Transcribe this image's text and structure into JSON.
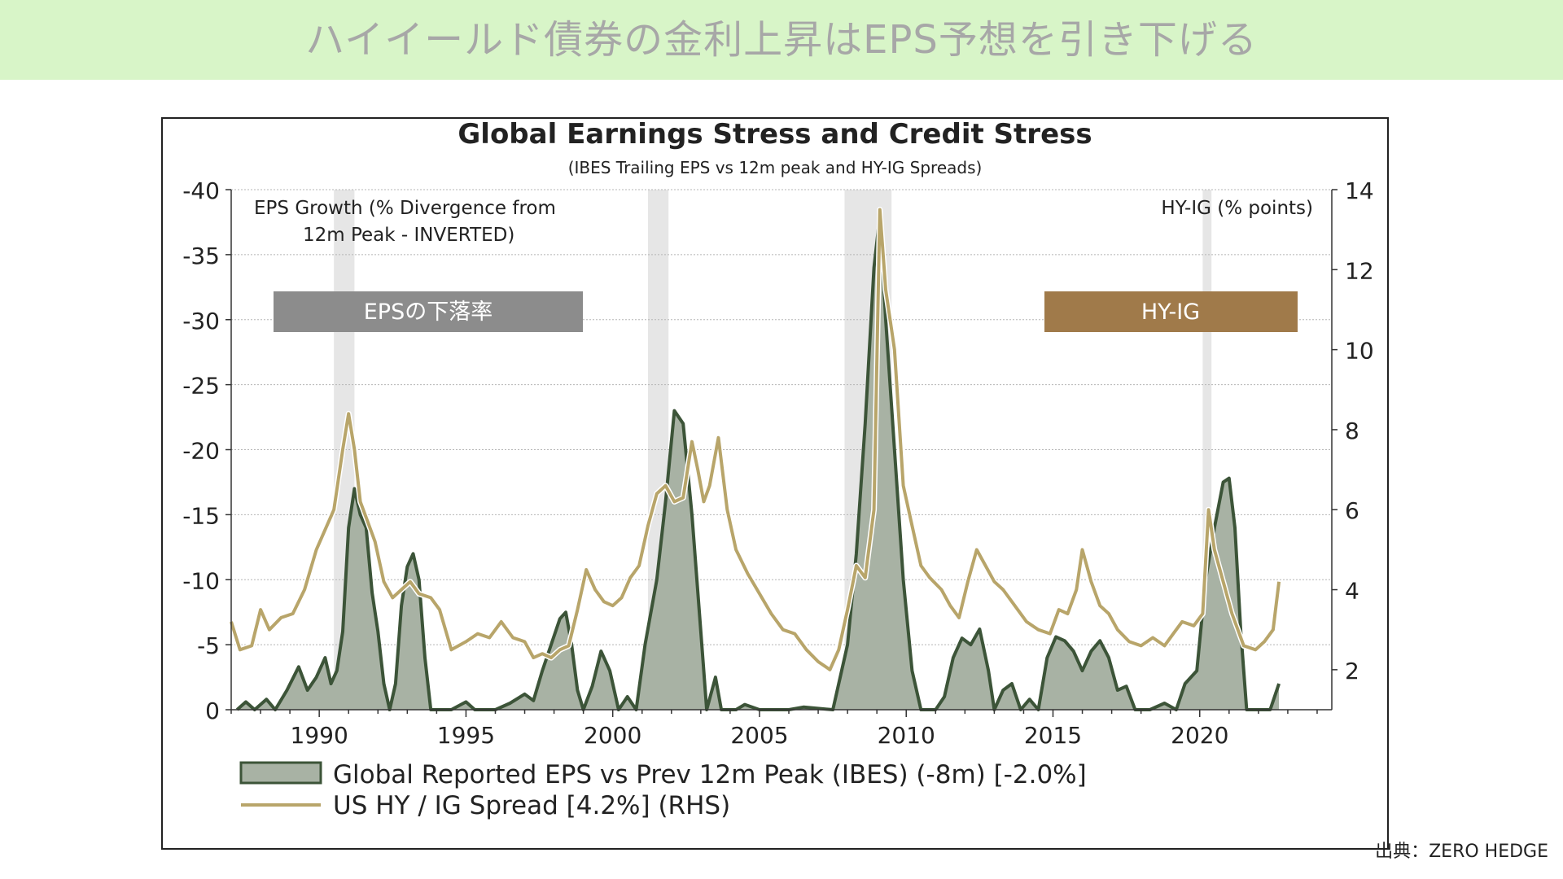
{
  "banner": {
    "title": "ハイイールド債券の金利上昇はEPS予想を引き下げる"
  },
  "source": "出典：ZERO HEDGE",
  "chart_data": {
    "type": "area",
    "title": "Global Earnings Stress and Credit Stress",
    "subtitle": "(IBES Trailing EPS vs 12m peak and HY-IG Spreads)",
    "left_axis_label_line1": "EPS Growth (% Divergence from",
    "left_axis_label_line2": "12m Peak - INVERTED)",
    "right_axis_label": "HY-IG (% points)",
    "badge_left": "EPSの下落率",
    "badge_right": "HY-IG",
    "left_ticks": [
      "-40",
      "-35",
      "-30",
      "-25",
      "-20",
      "-15",
      "-10",
      "-5",
      "0"
    ],
    "right_ticks": [
      "14",
      "12",
      "10",
      "8",
      "6",
      "4",
      "2"
    ],
    "x_ticks": [
      "1990",
      "1995",
      "2000",
      "2005",
      "2010",
      "2015",
      "2020"
    ],
    "ylim_left": [
      0,
      -40
    ],
    "ylim_right": [
      1,
      14
    ],
    "xlim": [
      1987,
      2024.5
    ],
    "recessions": [
      [
        1990.5,
        1991.2
      ],
      [
        2001.2,
        2001.9
      ],
      [
        2007.9,
        2009.5
      ],
      [
        2020.1,
        2020.4
      ]
    ],
    "grid": true,
    "legend": [
      {
        "label": "Global Reported EPS vs Prev 12m Peak (IBES) (-8m) [-2.0%]",
        "type": "area"
      },
      {
        "label": "US HY / IG Spread [4.2%] (RHS)",
        "type": "line"
      }
    ],
    "colors": {
      "eps_fill": "#a8b2a4",
      "eps_line": "#3c5438",
      "hy_line": "#b8a56a",
      "badge_left": "#8c8c8c",
      "badge_right": "#a07a4a",
      "recession": "#e6e6e6"
    },
    "series": [
      {
        "name": "Global Reported EPS vs Prev 12m Peak (IBES) (-8m) [-2.0%]",
        "axis": "left",
        "points": [
          [
            1987.2,
            0
          ],
          [
            1987.5,
            -0.6
          ],
          [
            1987.8,
            0
          ],
          [
            1988.2,
            -0.8
          ],
          [
            1988.5,
            0
          ],
          [
            1988.9,
            -1.5
          ],
          [
            1989.3,
            -3.3
          ],
          [
            1989.6,
            -1.5
          ],
          [
            1989.9,
            -2.5
          ],
          [
            1990.2,
            -4
          ],
          [
            1990.4,
            -2
          ],
          [
            1990.6,
            -3
          ],
          [
            1990.8,
            -6
          ],
          [
            1991.0,
            -14
          ],
          [
            1991.2,
            -17
          ],
          [
            1991.4,
            -15
          ],
          [
            1991.6,
            -14
          ],
          [
            1991.8,
            -9
          ],
          [
            1992.0,
            -6
          ],
          [
            1992.2,
            -2
          ],
          [
            1992.4,
            0
          ],
          [
            1992.6,
            -2
          ],
          [
            1992.8,
            -8
          ],
          [
            1993.0,
            -11
          ],
          [
            1993.2,
            -12
          ],
          [
            1993.4,
            -10
          ],
          [
            1993.6,
            -4
          ],
          [
            1993.8,
            0
          ],
          [
            1994.5,
            0
          ],
          [
            1995,
            -0.6
          ],
          [
            1995.3,
            0
          ],
          [
            1996,
            0
          ],
          [
            1996.5,
            -0.5
          ],
          [
            1997,
            -1.2
          ],
          [
            1997.3,
            -0.7
          ],
          [
            1997.6,
            -3
          ],
          [
            1997.9,
            -5
          ],
          [
            1998.2,
            -7
          ],
          [
            1998.4,
            -7.5
          ],
          [
            1998.6,
            -5
          ],
          [
            1998.8,
            -1.5
          ],
          [
            1999,
            0
          ],
          [
            1999.3,
            -1.8
          ],
          [
            1999.6,
            -4.5
          ],
          [
            1999.9,
            -3
          ],
          [
            2000.2,
            0
          ],
          [
            2000.5,
            -1
          ],
          [
            2000.8,
            0
          ],
          [
            2001.1,
            -5
          ],
          [
            2001.5,
            -10
          ],
          [
            2001.8,
            -16
          ],
          [
            2002.1,
            -23
          ],
          [
            2002.4,
            -22
          ],
          [
            2002.7,
            -15
          ],
          [
            2003,
            -6
          ],
          [
            2003.2,
            0
          ],
          [
            2003.5,
            -2.5
          ],
          [
            2003.7,
            0
          ],
          [
            2004.2,
            0
          ],
          [
            2004.5,
            -0.4
          ],
          [
            2005,
            0
          ],
          [
            2006,
            0
          ],
          [
            2006.5,
            -0.2
          ],
          [
            2007.5,
            0
          ],
          [
            2008,
            -5
          ],
          [
            2008.3,
            -12
          ],
          [
            2008.6,
            -22
          ],
          [
            2008.9,
            -34
          ],
          [
            2009.1,
            -38
          ],
          [
            2009.3,
            -30
          ],
          [
            2009.6,
            -20
          ],
          [
            2009.9,
            -10
          ],
          [
            2010.2,
            -3
          ],
          [
            2010.5,
            0
          ],
          [
            2011,
            0
          ],
          [
            2011.3,
            -1
          ],
          [
            2011.6,
            -4
          ],
          [
            2011.9,
            -5.5
          ],
          [
            2012.2,
            -5
          ],
          [
            2012.5,
            -6.2
          ],
          [
            2012.8,
            -3
          ],
          [
            2013,
            0
          ],
          [
            2013.3,
            -1.5
          ],
          [
            2013.6,
            -2
          ],
          [
            2013.9,
            0
          ],
          [
            2014.2,
            -0.8
          ],
          [
            2014.5,
            0
          ],
          [
            2014.8,
            -4
          ],
          [
            2015.1,
            -5.6
          ],
          [
            2015.4,
            -5.3
          ],
          [
            2015.7,
            -4.5
          ],
          [
            2016,
            -3
          ],
          [
            2016.3,
            -4.5
          ],
          [
            2016.6,
            -5.3
          ],
          [
            2016.9,
            -4
          ],
          [
            2017.2,
            -1.5
          ],
          [
            2017.5,
            -1.8
          ],
          [
            2017.8,
            0
          ],
          [
            2018.3,
            0
          ],
          [
            2018.8,
            -0.5
          ],
          [
            2019.2,
            0
          ],
          [
            2019.5,
            -2
          ],
          [
            2019.9,
            -3
          ],
          [
            2020.2,
            -10
          ],
          [
            2020.5,
            -14
          ],
          [
            2020.8,
            -17.5
          ],
          [
            2021.0,
            -17.8
          ],
          [
            2021.2,
            -14
          ],
          [
            2021.4,
            -6
          ],
          [
            2021.6,
            0
          ],
          [
            2022.4,
            0
          ],
          [
            2022.7,
            -2
          ]
        ]
      },
      {
        "name": "US HY / IG Spread [4.2%] (RHS)",
        "axis": "right",
        "points": [
          [
            1987.0,
            3.2
          ],
          [
            1987.3,
            2.5
          ],
          [
            1987.7,
            2.6
          ],
          [
            1988.0,
            3.5
          ],
          [
            1988.3,
            3.0
          ],
          [
            1988.7,
            3.3
          ],
          [
            1989.1,
            3.4
          ],
          [
            1989.5,
            4.0
          ],
          [
            1989.9,
            5.0
          ],
          [
            1990.2,
            5.5
          ],
          [
            1990.5,
            6.0
          ],
          [
            1990.8,
            7.5
          ],
          [
            1991.0,
            8.4
          ],
          [
            1991.2,
            7.5
          ],
          [
            1991.4,
            6.2
          ],
          [
            1991.7,
            5.6
          ],
          [
            1991.9,
            5.2
          ],
          [
            1992.2,
            4.2
          ],
          [
            1992.5,
            3.8
          ],
          [
            1992.8,
            4.0
          ],
          [
            1993.1,
            4.2
          ],
          [
            1993.4,
            3.9
          ],
          [
            1993.8,
            3.8
          ],
          [
            1994.1,
            3.5
          ],
          [
            1994.5,
            2.5
          ],
          [
            1995.0,
            2.7
          ],
          [
            1995.4,
            2.9
          ],
          [
            1995.8,
            2.8
          ],
          [
            1996.2,
            3.2
          ],
          [
            1996.6,
            2.8
          ],
          [
            1997.0,
            2.7
          ],
          [
            1997.3,
            2.3
          ],
          [
            1997.6,
            2.4
          ],
          [
            1997.9,
            2.3
          ],
          [
            1998.2,
            2.5
          ],
          [
            1998.5,
            2.6
          ],
          [
            1998.8,
            3.5
          ],
          [
            1999.1,
            4.5
          ],
          [
            1999.4,
            4.0
          ],
          [
            1999.7,
            3.7
          ],
          [
            2000.0,
            3.6
          ],
          [
            2000.3,
            3.8
          ],
          [
            2000.6,
            4.3
          ],
          [
            2000.9,
            4.6
          ],
          [
            2001.2,
            5.6
          ],
          [
            2001.5,
            6.4
          ],
          [
            2001.8,
            6.6
          ],
          [
            2002.1,
            6.2
          ],
          [
            2002.4,
            6.3
          ],
          [
            2002.7,
            7.7
          ],
          [
            2002.9,
            7.0
          ],
          [
            2003.1,
            6.2
          ],
          [
            2003.3,
            6.6
          ],
          [
            2003.6,
            7.8
          ],
          [
            2003.9,
            6.0
          ],
          [
            2004.2,
            5.0
          ],
          [
            2004.6,
            4.4
          ],
          [
            2005.0,
            3.9
          ],
          [
            2005.4,
            3.4
          ],
          [
            2005.8,
            3.0
          ],
          [
            2006.2,
            2.9
          ],
          [
            2006.6,
            2.5
          ],
          [
            2007.0,
            2.2
          ],
          [
            2007.4,
            2.0
          ],
          [
            2007.7,
            2.5
          ],
          [
            2008.0,
            3.5
          ],
          [
            2008.3,
            4.6
          ],
          [
            2008.6,
            4.3
          ],
          [
            2008.9,
            6.0
          ],
          [
            2009.1,
            13.5
          ],
          [
            2009.3,
            11.5
          ],
          [
            2009.6,
            10.0
          ],
          [
            2009.9,
            6.6
          ],
          [
            2010.2,
            5.6
          ],
          [
            2010.5,
            4.6
          ],
          [
            2010.8,
            4.3
          ],
          [
            2011.2,
            4.0
          ],
          [
            2011.5,
            3.6
          ],
          [
            2011.8,
            3.3
          ],
          [
            2012.1,
            4.2
          ],
          [
            2012.4,
            5.0
          ],
          [
            2012.7,
            4.6
          ],
          [
            2013.0,
            4.2
          ],
          [
            2013.3,
            4.0
          ],
          [
            2013.7,
            3.6
          ],
          [
            2014.1,
            3.2
          ],
          [
            2014.5,
            3.0
          ],
          [
            2014.9,
            2.9
          ],
          [
            2015.2,
            3.5
          ],
          [
            2015.5,
            3.4
          ],
          [
            2015.8,
            4.0
          ],
          [
            2016.0,
            5.0
          ],
          [
            2016.3,
            4.2
          ],
          [
            2016.6,
            3.6
          ],
          [
            2016.9,
            3.4
          ],
          [
            2017.2,
            3.0
          ],
          [
            2017.6,
            2.7
          ],
          [
            2018.0,
            2.6
          ],
          [
            2018.4,
            2.8
          ],
          [
            2018.8,
            2.6
          ],
          [
            2019.1,
            2.9
          ],
          [
            2019.4,
            3.2
          ],
          [
            2019.8,
            3.1
          ],
          [
            2020.1,
            3.4
          ],
          [
            2020.3,
            6.0
          ],
          [
            2020.5,
            5.0
          ],
          [
            2020.8,
            4.2
          ],
          [
            2021.1,
            3.4
          ],
          [
            2021.5,
            2.6
          ],
          [
            2021.9,
            2.5
          ],
          [
            2022.2,
            2.7
          ],
          [
            2022.5,
            3.0
          ],
          [
            2022.7,
            4.2
          ]
        ]
      }
    ]
  }
}
